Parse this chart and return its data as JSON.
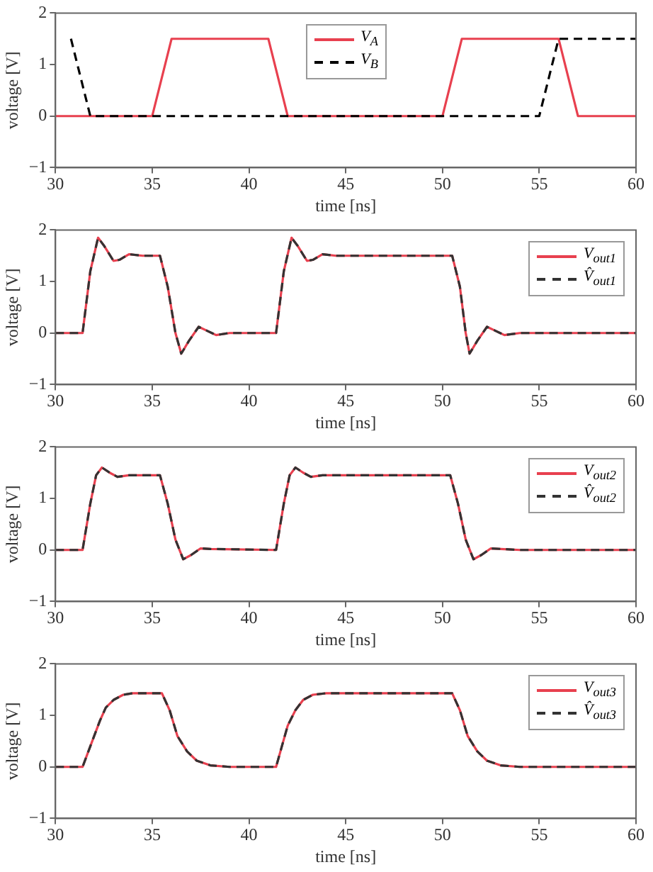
{
  "chart_data": [
    {
      "type": "line",
      "xlabel": "time [ns]",
      "ylabel": "voltage [V]",
      "xlim": [
        30,
        60
      ],
      "xticks": [
        30,
        35,
        40,
        45,
        50,
        55,
        60
      ],
      "ylim": [
        -1,
        2
      ],
      "yticks": [
        -1,
        0,
        1,
        2
      ],
      "legend": "top",
      "series": [
        {
          "name": "V$_{A}$",
          "color": "#e8404f",
          "line_style": "solid",
          "x": [
            30,
            35,
            36,
            41,
            42,
            50,
            51,
            56,
            57,
            60
          ],
          "values": [
            0,
            0,
            1.5,
            1.5,
            0,
            0,
            1.5,
            1.5,
            0,
            0
          ]
        },
        {
          "name": "V$_{B}$",
          "color": "#000000",
          "line_style": "dashed",
          "x": [
            30.8,
            31.8,
            55,
            56,
            60
          ],
          "values": [
            1.5,
            0,
            0,
            1.5,
            1.5
          ]
        }
      ]
    },
    {
      "type": "line",
      "xlabel": "time [ns]",
      "ylabel": "voltage [V]",
      "xlim": [
        30,
        60
      ],
      "xticks": [
        30,
        35,
        40,
        45,
        50,
        55,
        60
      ],
      "ylim": [
        -1,
        2
      ],
      "yticks": [
        -1,
        0,
        1,
        2
      ],
      "legend": "top right",
      "series": [
        {
          "name": "V$_{out1}$",
          "color": "#e8404f",
          "line_style": "solid",
          "x": [
            30,
            31.4,
            31.8,
            32.2,
            32.5,
            33,
            33.3,
            33.8,
            34.5,
            35.4,
            35.8,
            36.2,
            36.5,
            36.9,
            37.4,
            37.8,
            38.3,
            39,
            41.4,
            41.8,
            42.2,
            42.5,
            43,
            43.3,
            43.8,
            44.5,
            50.5,
            50.9,
            51.2,
            51.4,
            51.8,
            52.3,
            52.7,
            53.2,
            54,
            60
          ],
          "values": [
            0,
            0,
            1.2,
            1.85,
            1.7,
            1.4,
            1.42,
            1.53,
            1.5,
            1.5,
            0.9,
            0,
            -0.4,
            -0.15,
            0.12,
            0.05,
            -0.04,
            0,
            0,
            1.2,
            1.85,
            1.7,
            1.4,
            1.42,
            1.53,
            1.5,
            1.5,
            0.9,
            0,
            -0.4,
            -0.15,
            0.12,
            0.05,
            -0.04,
            0,
            0
          ]
        },
        {
          "name": "V̂$_{out1}$",
          "color": "#333333",
          "line_style": "dashed",
          "x": [
            30,
            31.4,
            31.8,
            32.2,
            32.5,
            33,
            33.3,
            33.8,
            34.5,
            35.4,
            35.8,
            36.2,
            36.5,
            36.9,
            37.4,
            37.8,
            38.3,
            39,
            41.4,
            41.8,
            42.2,
            42.5,
            43,
            43.3,
            43.8,
            44.5,
            50.5,
            50.9,
            51.2,
            51.4,
            51.8,
            52.3,
            52.7,
            53.2,
            54,
            60
          ],
          "values": [
            0,
            0,
            1.2,
            1.85,
            1.7,
            1.4,
            1.42,
            1.53,
            1.5,
            1.5,
            0.9,
            0,
            -0.4,
            -0.15,
            0.12,
            0.05,
            -0.04,
            0,
            0,
            1.2,
            1.85,
            1.7,
            1.4,
            1.42,
            1.53,
            1.5,
            1.5,
            0.9,
            0,
            -0.4,
            -0.15,
            0.12,
            0.05,
            -0.04,
            0,
            0
          ]
        }
      ]
    },
    {
      "type": "line",
      "xlabel": "time [ns]",
      "ylabel": "voltage [V]",
      "xlim": [
        30,
        60
      ],
      "xticks": [
        30,
        35,
        40,
        45,
        50,
        55,
        60
      ],
      "ylim": [
        -1,
        2
      ],
      "yticks": [
        -1,
        0,
        1,
        2
      ],
      "legend": "top right",
      "series": [
        {
          "name": "V$_{out2}$",
          "color": "#e8404f",
          "line_style": "solid",
          "x": [
            30,
            31.4,
            31.8,
            32.1,
            32.4,
            32.8,
            33.2,
            33.8,
            35.4,
            35.8,
            36.2,
            36.6,
            37,
            37.5,
            38,
            41.4,
            41.8,
            42.1,
            42.4,
            42.8,
            43.2,
            43.8,
            50.4,
            50.8,
            51.2,
            51.6,
            52,
            52.5,
            53,
            54,
            60
          ],
          "values": [
            0,
            0,
            0.9,
            1.45,
            1.6,
            1.5,
            1.42,
            1.45,
            1.45,
            0.9,
            0.2,
            -0.18,
            -0.1,
            0.03,
            0.02,
            0,
            0.9,
            1.45,
            1.6,
            1.5,
            1.42,
            1.45,
            1.45,
            0.9,
            0.2,
            -0.18,
            -0.1,
            0.03,
            0.02,
            0,
            0
          ]
        },
        {
          "name": "V̂$_{out2}$",
          "color": "#333333",
          "line_style": "dashed",
          "x": [
            30,
            31.4,
            31.8,
            32.1,
            32.4,
            32.8,
            33.2,
            33.8,
            35.4,
            35.8,
            36.2,
            36.6,
            37,
            37.5,
            38,
            41.4,
            41.8,
            42.1,
            42.4,
            42.8,
            43.2,
            43.8,
            50.4,
            50.8,
            51.2,
            51.6,
            52,
            52.5,
            53,
            54,
            60
          ],
          "values": [
            0,
            0,
            0.9,
            1.45,
            1.6,
            1.5,
            1.42,
            1.45,
            1.45,
            0.9,
            0.2,
            -0.18,
            -0.1,
            0.03,
            0.02,
            0,
            0.9,
            1.45,
            1.6,
            1.5,
            1.42,
            1.45,
            1.45,
            0.9,
            0.2,
            -0.18,
            -0.1,
            0.03,
            0.02,
            0,
            0
          ]
        }
      ]
    },
    {
      "type": "line",
      "xlabel": "time [ns]",
      "ylabel": "voltage [V]",
      "xlim": [
        30,
        60
      ],
      "xticks": [
        30,
        35,
        40,
        45,
        50,
        55,
        60
      ],
      "ylim": [
        -1,
        2
      ],
      "yticks": [
        -1,
        0,
        1,
        2
      ],
      "legend": "top right",
      "series": [
        {
          "name": "V$_{out3}$",
          "color": "#e8404f",
          "line_style": "solid",
          "x": [
            30,
            31.4,
            31.9,
            32.3,
            32.6,
            33,
            33.5,
            34,
            35.5,
            35.9,
            36.3,
            36.8,
            37.3,
            38,
            39,
            41.4,
            41.7,
            42,
            42.4,
            42.8,
            43.3,
            44,
            50.5,
            50.9,
            51.3,
            51.8,
            52.3,
            53,
            54,
            60
          ],
          "values": [
            0,
            0,
            0.5,
            0.9,
            1.15,
            1.3,
            1.4,
            1.43,
            1.43,
            1.1,
            0.6,
            0.3,
            0.12,
            0.03,
            0,
            0,
            0.4,
            0.8,
            1.1,
            1.3,
            1.4,
            1.43,
            1.43,
            1.1,
            0.6,
            0.3,
            0.12,
            0.03,
            0,
            0
          ]
        },
        {
          "name": "V̂$_{out3}$",
          "color": "#333333",
          "line_style": "dashed",
          "x": [
            30,
            31.4,
            31.9,
            32.3,
            32.6,
            33,
            33.5,
            34,
            35.5,
            35.9,
            36.3,
            36.8,
            37.3,
            38,
            39,
            41.4,
            41.7,
            42,
            42.4,
            42.8,
            43.3,
            44,
            50.5,
            50.9,
            51.3,
            51.8,
            52.3,
            53,
            54,
            60
          ],
          "values": [
            0,
            0,
            0.5,
            0.9,
            1.15,
            1.3,
            1.4,
            1.43,
            1.43,
            1.1,
            0.6,
            0.3,
            0.12,
            0.03,
            0,
            0,
            0.4,
            0.8,
            1.1,
            1.3,
            1.4,
            1.43,
            1.43,
            1.1,
            0.6,
            0.3,
            0.12,
            0.03,
            0,
            0
          ]
        }
      ]
    }
  ]
}
